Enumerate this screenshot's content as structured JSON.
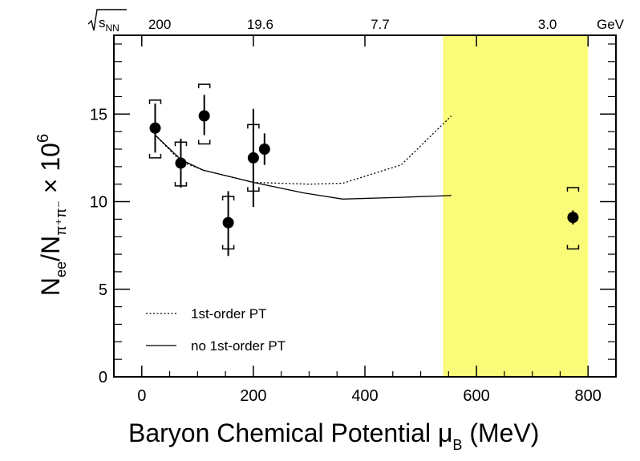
{
  "chart_data": {
    "type": "scatter",
    "xlabel": "Baryon Chemical Potential",
    "xlabel_symbol": "μ",
    "xlabel_subscript": "B",
    "xlabel_unit": "(MeV)",
    "ylabel": {
      "main": "N",
      "sub1": "ee",
      "slash": "/N",
      "sub2": "π⁺π⁻",
      "times": " × 10",
      "exp": "6"
    },
    "xlim": [
      -50,
      850
    ],
    "ylim": [
      0,
      19.5
    ],
    "x_ticks": [
      0,
      200,
      400,
      600,
      800
    ],
    "x_tick_labels": [
      "0",
      "200",
      "400",
      "600",
      "800"
    ],
    "y_ticks": [
      0,
      5,
      10,
      15
    ],
    "y_tick_labels": [
      "0",
      "5",
      "10",
      "15"
    ],
    "top_axis": {
      "label": "√sNN",
      "label_text": "s",
      "label_sub": "NN",
      "unit": "GeV",
      "ticks": [
        {
          "label": "200",
          "mu_b": 25
        },
        {
          "label": "19.6",
          "mu_b": 205
        },
        {
          "label": "7.7",
          "mu_b": 420
        },
        {
          "label": "3.0",
          "mu_b": 720
        }
      ]
    },
    "highlight_band": {
      "x_range": [
        540,
        800
      ],
      "color": "#fbfb7a"
    },
    "series": [
      {
        "name": "data",
        "marker": "filled-circle",
        "points": [
          {
            "x": 24,
            "y": 14.2,
            "stat_lo": 12.8,
            "stat_hi": 15.6,
            "sys_lo": 12.5,
            "sys_hi": 15.8
          },
          {
            "x": 70,
            "y": 12.2,
            "stat_lo": 10.8,
            "stat_hi": 13.6,
            "sys_lo": 10.9,
            "sys_hi": 13.4
          },
          {
            "x": 112,
            "y": 14.9,
            "stat_lo": 13.8,
            "stat_hi": 16.1,
            "sys_lo": 13.3,
            "sys_hi": 16.7
          },
          {
            "x": 155,
            "y": 8.8,
            "stat_lo": 6.9,
            "stat_hi": 10.6,
            "sys_lo": 7.3,
            "sys_hi": 10.3
          },
          {
            "x": 200,
            "y": 12.5,
            "stat_lo": 9.7,
            "stat_hi": 15.3,
            "sys_lo": 10.6,
            "sys_hi": 14.4
          },
          {
            "x": 220,
            "y": 13.0,
            "stat_lo": 12.1,
            "stat_hi": 13.9
          },
          {
            "x": 773,
            "y": 9.1,
            "stat_lo": 8.7,
            "stat_hi": 9.5,
            "sys_lo": 7.3,
            "sys_hi": 10.8
          }
        ]
      },
      {
        "name": "1st-order PT",
        "style": "dotted",
        "points": [
          [
            24,
            13.8
          ],
          [
            70,
            12.3
          ],
          [
            110,
            11.8
          ],
          [
            200,
            11.1
          ],
          [
            300,
            11.0
          ],
          [
            360,
            11.05
          ],
          [
            465,
            12.1
          ],
          [
            555,
            14.9
          ]
        ]
      },
      {
        "name": "no 1st-order PT",
        "style": "solid",
        "points": [
          [
            24,
            13.8
          ],
          [
            70,
            12.4
          ],
          [
            110,
            11.8
          ],
          [
            200,
            11.1
          ],
          [
            290,
            10.5
          ],
          [
            360,
            10.15
          ],
          [
            465,
            10.25
          ],
          [
            555,
            10.35
          ]
        ]
      }
    ],
    "legend": {
      "position": "bottom-left",
      "entries": [
        {
          "label": "1st-order PT",
          "style": "dotted"
        },
        {
          "label": "no 1st-order PT",
          "style": "solid"
        }
      ]
    }
  }
}
